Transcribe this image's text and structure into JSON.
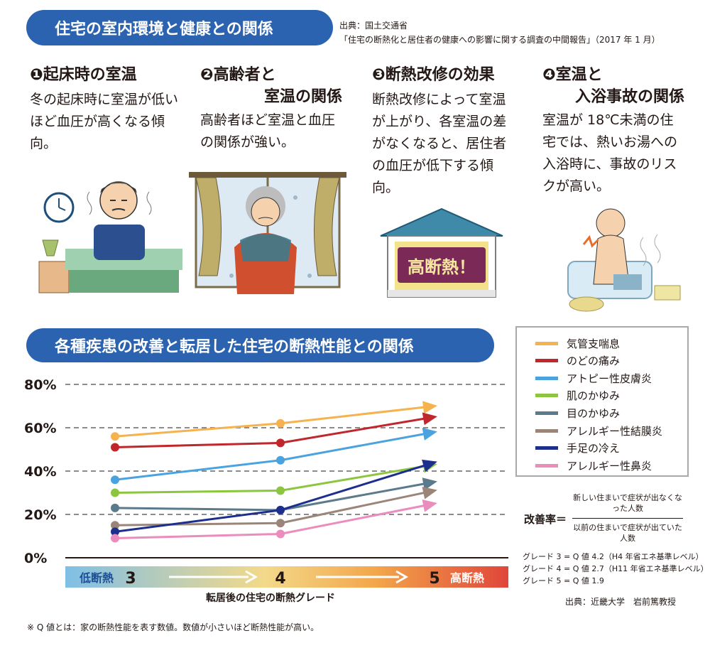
{
  "header": {
    "title": "住宅の室内環境と健康との関係",
    "source_line1": "出典：国土交通省",
    "source_line2": "「住宅の断熱化と居住者の健康への影響に関する調査の中間報告」（2017 年 1 月）"
  },
  "sections": [
    {
      "num": "❶",
      "title_line1": "起床時の室温",
      "title_line2": "",
      "body": "冬の起床時に室温が低いほど血圧が高くなる傾向。"
    },
    {
      "num": "❷",
      "title_line1": "高齢者と",
      "title_line2": "室温の関係",
      "body": "高齢者ほど室温と血圧の関係が強い。"
    },
    {
      "num": "❸",
      "title_line1": "断熱改修の効果",
      "title_line2": "",
      "body": "断熱改修によって室温が上がり、各室温の差がなくなると、居住者の血圧が低下する傾向。"
    },
    {
      "num": "❹",
      "title_line1": "室温と",
      "title_line2": "入浴事故の関係",
      "body": "室温が 18℃未満の住宅では、熱いお湯への入浴時に、事故のリスクが高い。"
    }
  ],
  "house_sign": "高断熱！",
  "chart_section_title": "各種疾患の改善と転居した住宅の断熱性能との関係",
  "chart_data": {
    "type": "line",
    "x": [
      "3",
      "4",
      "5"
    ],
    "ylim": [
      0,
      80
    ],
    "yticks": [
      "0%",
      "20%",
      "40%",
      "60%",
      "80%"
    ],
    "xlabel": "転居後の住宅の断熱グレード",
    "x_axis_low_label": "低断熱",
    "x_axis_high_label": "高断熱",
    "grid": "dashed horizontal",
    "legend_position": "right",
    "series": [
      {
        "name": "気管支喘息",
        "color": "#f5b24e",
        "values": [
          56,
          62,
          70
        ]
      },
      {
        "name": "のどの痛み",
        "color": "#c0272d",
        "values": [
          51,
          53,
          65
        ]
      },
      {
        "name": "アトピー性皮膚炎",
        "color": "#4aa3df",
        "values": [
          36,
          45,
          58
        ]
      },
      {
        "name": "肌のかゆみ",
        "color": "#8cc63f",
        "values": [
          30,
          31,
          43
        ]
      },
      {
        "name": "目のかゆみ",
        "color": "#5b7a8c",
        "values": [
          23,
          22,
          35
        ]
      },
      {
        "name": "アレルギー性結膜炎",
        "color": "#9b8579",
        "values": [
          15,
          16,
          31
        ]
      },
      {
        "name": "手足の冷え",
        "color": "#1d2f8c",
        "values": [
          12,
          22,
          44
        ]
      },
      {
        "name": "アレルギー性鼻炎",
        "color": "#ea8cbc",
        "values": [
          9,
          11,
          25
        ]
      }
    ]
  },
  "formula": {
    "label": "改善率＝",
    "numerator": "新しい住まいで症状が出なくなった人数",
    "denominator": "以前の住まいで症状が出ていた人数"
  },
  "grade_notes": [
    "グレード 3 = Q 値 4.2（H4 年省エネ基準レベル）",
    "グレード 4 = Q 値 2.7（H11 年省エネ基準レベル）",
    "グレード 5 = Q 値 1.9"
  ],
  "chart_source": "出典：近畿大学　岩前篤教授",
  "footnote": "※ Q 値とは：家の断熱性能を表す数値。数値が小さいほど断熱性能が高い。"
}
